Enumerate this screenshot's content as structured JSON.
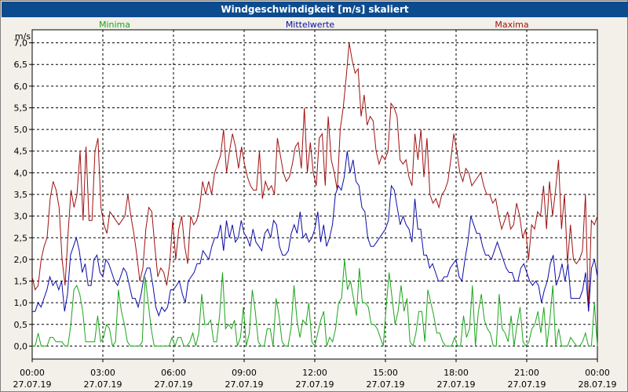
{
  "window": {
    "title": "Windgeschwindigkeit [m/s] skaliert"
  },
  "chart_data": {
    "type": "line",
    "title": "Windgeschwindigkeit [m/s] skaliert",
    "ylabel": "m/s",
    "xlabel": "",
    "ylim": [
      -0.3,
      7.3
    ],
    "xlim": [
      0,
      24
    ],
    "grid": true,
    "y_ticks": [
      "0,0",
      "0,5",
      "1,0",
      "1,5",
      "2,0",
      "2,5",
      "3,0",
      "3,5",
      "4,0",
      "4,5",
      "5,0",
      "5,5",
      "6,0",
      "6,5",
      "7,0"
    ],
    "y_tick_values": [
      0,
      0.5,
      1,
      1.5,
      2,
      2.5,
      3,
      3.5,
      4,
      4.5,
      5,
      5.5,
      6,
      6.5,
      7
    ],
    "x_ticks": [
      {
        "time": "00:00",
        "date": "27.07.19",
        "hour": 0
      },
      {
        "time": "03:00",
        "date": "27.07.19",
        "hour": 3
      },
      {
        "time": "06:00",
        "date": "27.07.19",
        "hour": 6
      },
      {
        "time": "09:00",
        "date": "27.07.19",
        "hour": 9
      },
      {
        "time": "12:00",
        "date": "27.07.19",
        "hour": 12
      },
      {
        "time": "15:00",
        "date": "27.07.19",
        "hour": 15
      },
      {
        "time": "18:00",
        "date": "27.07.19",
        "hour": 18
      },
      {
        "time": "21:00",
        "date": "27.07.19",
        "hour": 21
      },
      {
        "time": "00:00",
        "date": "28.07.19",
        "hour": 24
      }
    ],
    "legend": [
      {
        "name": "Minima",
        "color": "#1aa51a"
      },
      {
        "name": "Mittelwerte",
        "color": "#0b0ba8"
      },
      {
        "name": "Maxima",
        "color": "#a01010"
      }
    ],
    "series": [
      {
        "name": "Maxima",
        "color": "#a01010",
        "values": [
          1.6,
          1.3,
          1.4,
          2.0,
          2.3,
          2.5,
          3.4,
          3.8,
          3.6,
          3.2,
          2.0,
          1.4,
          2.6,
          3.6,
          3.2,
          3.5,
          4.5,
          2.9,
          4.6,
          2.9,
          2.9,
          4.5,
          4.8,
          3.2,
          2.8,
          2.6,
          3.1,
          3.0,
          2.9,
          2.8,
          2.9,
          3.0,
          3.5,
          3.0,
          2.6,
          2.1,
          1.5,
          1.8,
          2.7,
          3.2,
          3.1,
          2.3,
          1.6,
          1.8,
          1.7,
          1.4,
          1.9,
          2.9,
          2.0,
          2.7,
          3.0,
          2.3,
          1.9,
          3.0,
          2.8,
          2.9,
          3.2,
          3.8,
          3.5,
          3.8,
          3.5,
          4.0,
          4.2,
          4.4,
          5.0,
          4.0,
          4.5,
          4.9,
          4.6,
          4.1,
          4.6,
          4.2,
          3.9,
          3.7,
          3.6,
          3.6,
          4.5,
          3.4,
          3.8,
          3.6,
          3.7,
          3.5,
          4.8,
          4.4,
          4.0,
          3.8,
          3.9,
          4.2,
          4.6,
          4.7,
          4.1,
          5.5,
          4.0,
          4.7,
          4.0,
          3.7,
          4.8,
          4.9,
          3.7,
          5.3,
          4.3,
          4.0,
          3.6,
          5.0,
          5.5,
          6.2,
          7.0,
          6.6,
          6.3,
          6.4,
          5.3,
          5.8,
          5.1,
          5.3,
          5.2,
          4.5,
          4.2,
          4.4,
          4.3,
          4.5,
          5.6,
          5.5,
          5.3,
          4.3,
          4.2,
          4.3,
          3.9,
          3.7,
          4.9,
          4.3,
          5.0,
          3.9,
          4.8,
          3.5,
          3.3,
          3.4,
          3.2,
          3.5,
          3.6,
          3.8,
          4.3,
          4.9,
          4.5,
          4.0,
          3.8,
          4.1,
          4.0,
          3.7,
          3.8,
          3.9,
          4.0,
          3.7,
          3.5,
          3.5,
          3.3,
          3.4,
          3.0,
          2.7,
          2.9,
          3.1,
          2.7,
          2.8,
          3.3,
          3.0,
          2.5,
          2.7,
          2.0,
          2.8,
          2.7,
          3.1,
          3.0,
          3.7,
          2.7,
          3.8,
          3.0,
          3.6,
          4.3,
          2.7,
          3.5,
          1.9,
          2.8,
          2.0,
          1.9,
          2.0,
          2.2,
          3.5,
          0.8,
          2.9,
          2.8,
          3.0
        ]
      },
      {
        "name": "Mittelwerte",
        "color": "#0b0ba8",
        "values": [
          0.8,
          0.8,
          1.0,
          0.9,
          1.1,
          1.3,
          1.6,
          1.4,
          1.5,
          1.3,
          1.5,
          0.8,
          1.2,
          2.1,
          2.3,
          2.5,
          2.2,
          1.7,
          1.9,
          1.4,
          1.4,
          2.0,
          2.1,
          1.7,
          1.6,
          2.0,
          1.9,
          1.7,
          1.5,
          1.4,
          1.6,
          1.8,
          1.7,
          1.4,
          1.1,
          1.1,
          0.9,
          1.2,
          1.6,
          1.8,
          1.8,
          1.4,
          0.9,
          0.7,
          0.9,
          0.8,
          0.9,
          1.3,
          1.3,
          1.4,
          1.5,
          1.2,
          1.0,
          1.5,
          1.6,
          1.7,
          1.9,
          1.9,
          2.2,
          2.1,
          2.0,
          2.3,
          2.5,
          2.5,
          2.8,
          2.2,
          2.9,
          2.5,
          2.8,
          2.4,
          2.5,
          2.9,
          2.6,
          2.5,
          2.3,
          2.7,
          2.4,
          2.3,
          2.2,
          2.6,
          2.7,
          2.5,
          2.9,
          2.8,
          2.3,
          2.1,
          2.1,
          2.2,
          2.6,
          2.8,
          2.6,
          3.1,
          2.5,
          2.6,
          2.4,
          2.5,
          2.7,
          3.1,
          2.4,
          2.8,
          2.3,
          2.5,
          2.8,
          3.5,
          3.7,
          3.6,
          3.9,
          4.5,
          4.0,
          4.3,
          3.8,
          3.7,
          3.2,
          3.1,
          2.5,
          2.3,
          2.3,
          2.4,
          2.5,
          2.6,
          2.7,
          2.9,
          3.7,
          3.6,
          3.2,
          2.8,
          3.0,
          2.8,
          2.7,
          2.4,
          3.4,
          2.7,
          2.7,
          2.1,
          2.1,
          1.8,
          1.9,
          1.7,
          1.5,
          1.5,
          1.6,
          1.6,
          1.8,
          1.9,
          2.0,
          1.6,
          1.5,
          2.0,
          2.4,
          3.0,
          2.8,
          2.6,
          2.6,
          2.3,
          2.1,
          2.1,
          2.0,
          2.2,
          2.4,
          2.2,
          2.0,
          1.8,
          1.7,
          1.7,
          1.5,
          1.5,
          1.8,
          1.9,
          1.7,
          1.5,
          1.4,
          1.5,
          1.4,
          1.0,
          1.3,
          1.5,
          1.9,
          2.1,
          1.4,
          1.6,
          1.9,
          1.5,
          1.9,
          1.1,
          1.1,
          1.1,
          1.1,
          1.3,
          1.7,
          0.8,
          1.8,
          2.0,
          1.6
        ]
      },
      {
        "name": "Minima",
        "color": "#1aa51a",
        "values": [
          0.0,
          0.0,
          0.3,
          0.0,
          0.0,
          0.0,
          0.2,
          0.2,
          0.1,
          0.1,
          0.1,
          0.0,
          0.0,
          0.5,
          1.3,
          1.4,
          1.2,
          0.8,
          0.1,
          0.1,
          0.1,
          0.1,
          0.7,
          0.1,
          0.2,
          0.5,
          0.4,
          0.0,
          0.1,
          1.3,
          0.8,
          0.5,
          0.1,
          0.0,
          0.0,
          0.0,
          0.0,
          0.1,
          1.6,
          1.0,
          0.4,
          0.0,
          0.0,
          0.0,
          0.0,
          0.0,
          0.0,
          0.2,
          0.0,
          0.2,
          0.2,
          0.0,
          0.0,
          0.1,
          0.3,
          0.0,
          0.3,
          1.2,
          0.5,
          0.5,
          0.6,
          0.1,
          0.1,
          0.7,
          1.7,
          0.4,
          0.5,
          0.4,
          0.6,
          0.0,
          0.2,
          0.9,
          0.0,
          0.3,
          1.3,
          0.8,
          0.1,
          0.0,
          0.0,
          0.4,
          0.4,
          0.0,
          1.1,
          0.7,
          0.1,
          0.0,
          0.0,
          0.4,
          1.4,
          0.6,
          0.2,
          0.6,
          0.5,
          1.0,
          0.1,
          0.0,
          0.3,
          0.6,
          0.8,
          0.0,
          0.2,
          0.1,
          0.4,
          1.0,
          1.1,
          2.0,
          1.3,
          1.5,
          1.1,
          0.7,
          1.8,
          1.0,
          1.0,
          0.9,
          0.5,
          0.5,
          0.4,
          0.2,
          0.0,
          0.9,
          1.7,
          1.1,
          0.5,
          0.8,
          1.4,
          0.8,
          1.1,
          0.1,
          0.0,
          0.3,
          0.8,
          0.8,
          0.1,
          1.3,
          1.0,
          0.7,
          0.3,
          0.3,
          0.1,
          0.0,
          0.0,
          0.0,
          0.2,
          0.0,
          0.0,
          0.7,
          0.2,
          0.4,
          1.4,
          0.0,
          0.8,
          1.2,
          0.6,
          0.4,
          0.3,
          0.0,
          0.0,
          1.2,
          0.4,
          0.3,
          0.1,
          0.7,
          0.0,
          0.5,
          0.9,
          0.1,
          0.0,
          0.1,
          0.4,
          0.5,
          0.8,
          0.3,
          0.9,
          0.0,
          0.6,
          1.4,
          0.0,
          0.4,
          0.0,
          0.0,
          0.0,
          0.2,
          0.1,
          0.0,
          0.0,
          0.1,
          0.3,
          0.0,
          0.0,
          1.0,
          0.0
        ]
      }
    ]
  }
}
